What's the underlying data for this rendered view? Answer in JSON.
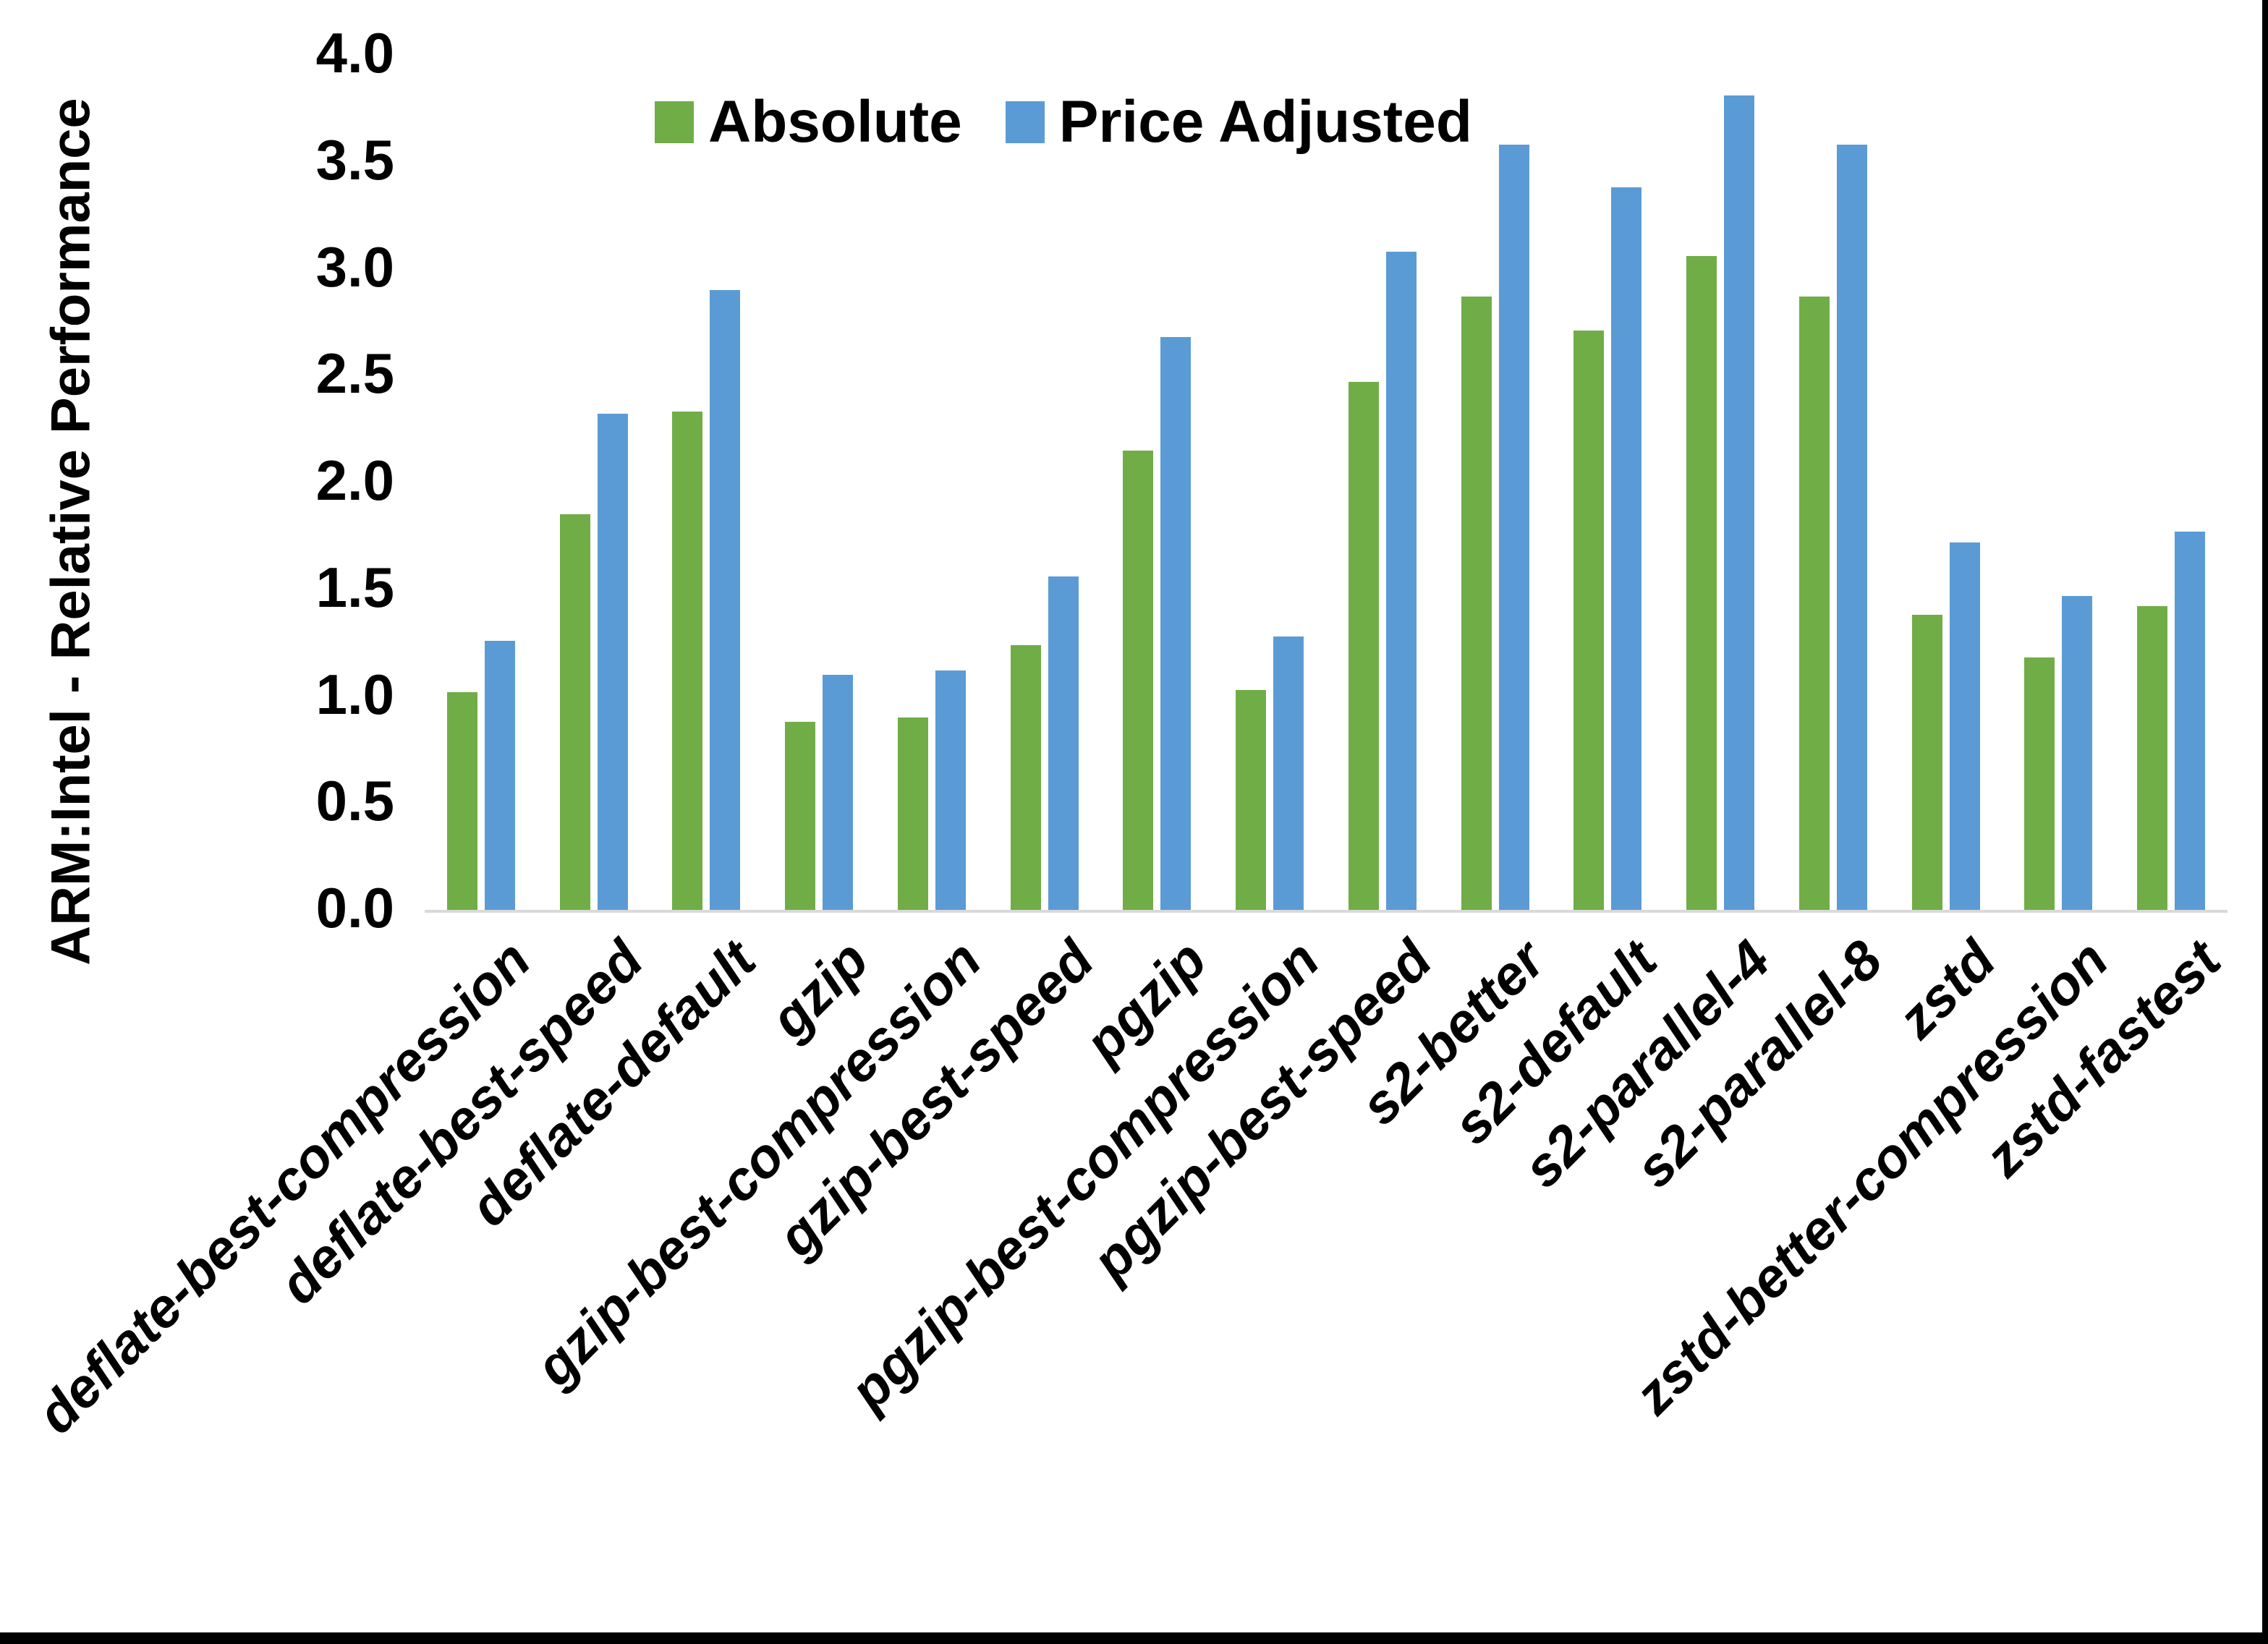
{
  "figure": {
    "background": "#ffffff",
    "edge_color": "#000000",
    "axis_line_color": "#d9d9d9",
    "text_color": "#000000"
  },
  "chart_data": {
    "type": "bar",
    "title": "",
    "xlabel": "",
    "ylabel": "ARM:Intel - Relative Performance",
    "ylim": [
      0.0,
      4.0
    ],
    "ytick_step": 0.5,
    "yticks": [
      "4.0",
      "3.5",
      "3.0",
      "2.5",
      "2.0",
      "1.5",
      "1.0",
      "0.5",
      "0.0"
    ],
    "grid": "off",
    "legend_position": "top-center",
    "categories": [
      "deflate-best-compression",
      "deflate-best-speed",
      "deflate-default",
      "gzip",
      "gzip-best-compression",
      "gzip-best-speed",
      "pgzip",
      "pgzip-best-compression",
      "pgzip-best-speed",
      "s2-better",
      "s2-default",
      "s2-parallel-4",
      "s2-parallel-8",
      "zstd",
      "zstd-better-compression",
      "zstd-fastest"
    ],
    "series": [
      {
        "name": "Absolute",
        "color": "#70AD47",
        "values": [
          1.02,
          1.85,
          2.33,
          0.88,
          0.9,
          1.24,
          2.15,
          1.03,
          2.47,
          2.87,
          2.71,
          3.06,
          2.87,
          1.38,
          1.18,
          1.42
        ]
      },
      {
        "name": "Price Adjusted",
        "color": "#5B9BD5",
        "values": [
          1.26,
          2.32,
          2.9,
          1.1,
          1.12,
          1.56,
          2.68,
          1.28,
          3.08,
          3.58,
          3.38,
          3.81,
          3.58,
          1.72,
          1.47,
          1.77
        ]
      }
    ]
  }
}
